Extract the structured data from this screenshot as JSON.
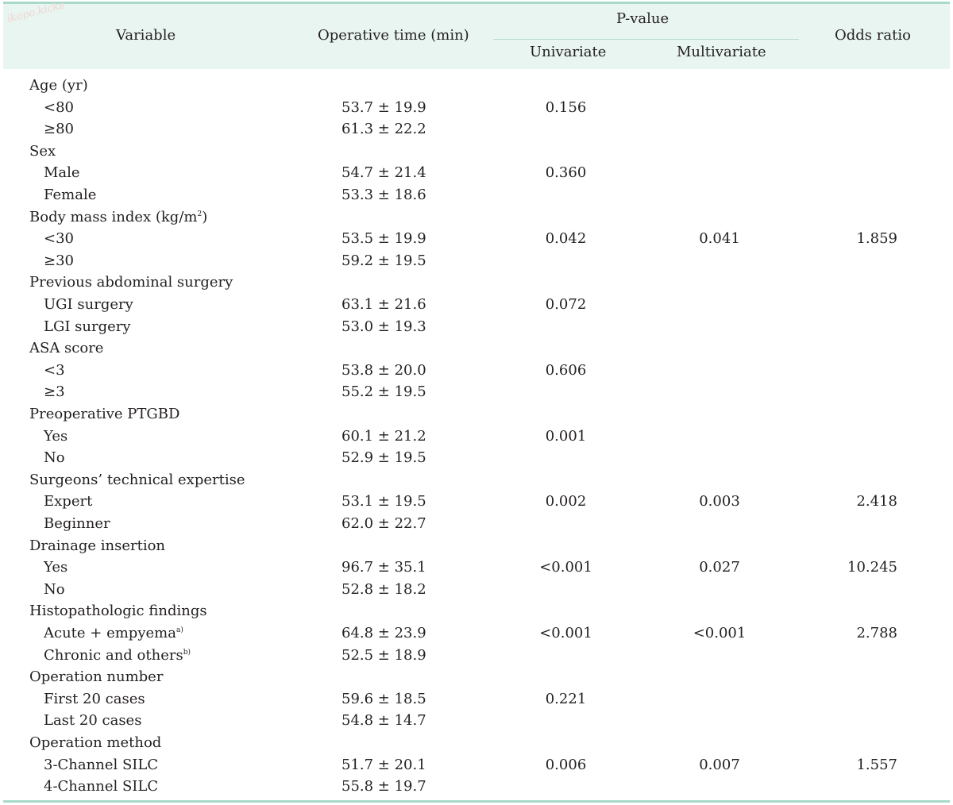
{
  "watermark": "ikopo.kicke",
  "header": {
    "variable": "Variable",
    "operative_time": "Operative time (min)",
    "p_value": "P-value",
    "univariate": "Univariate",
    "multivariate": "Multivariate",
    "odds_ratio": "Odds ratio"
  },
  "rows": [
    {
      "label": "Age (yr)",
      "indent": false,
      "op": "",
      "uni": "",
      "multi": "",
      "odds": ""
    },
    {
      "label": "<80",
      "indent": true,
      "op": "53.7 ± 19.9",
      "uni": "0.156",
      "multi": "",
      "odds": ""
    },
    {
      "label": "≥80",
      "indent": true,
      "op": "61.3 ± 22.2",
      "uni": "",
      "multi": "",
      "odds": ""
    },
    {
      "label": "Sex",
      "indent": false,
      "op": "",
      "uni": "",
      "multi": "",
      "odds": ""
    },
    {
      "label": "Male",
      "indent": true,
      "op": "54.7 ± 21.4",
      "uni": "0.360",
      "multi": "",
      "odds": ""
    },
    {
      "label": "Female",
      "indent": true,
      "op": "53.3 ± 18.6",
      "uni": "",
      "multi": "",
      "odds": ""
    },
    {
      "label": "Body mass index (kg/m",
      "sup": "2",
      "suffix": ")",
      "indent": false,
      "op": "",
      "uni": "",
      "multi": "",
      "odds": ""
    },
    {
      "label": "<30",
      "indent": true,
      "op": "53.5 ± 19.9",
      "uni": "0.042",
      "multi": "0.041",
      "odds": "1.859"
    },
    {
      "label": "≥30",
      "indent": true,
      "op": "59.2 ± 19.5",
      "uni": "",
      "multi": "",
      "odds": ""
    },
    {
      "label": "Previous abdominal surgery",
      "indent": false,
      "op": "",
      "uni": "",
      "multi": "",
      "odds": ""
    },
    {
      "label": "UGI surgery",
      "indent": true,
      "op": "63.1 ± 21.6",
      "uni": "0.072",
      "multi": "",
      "odds": ""
    },
    {
      "label": "LGI surgery",
      "indent": true,
      "op": "53.0 ± 19.3",
      "uni": "",
      "multi": "",
      "odds": ""
    },
    {
      "label": "ASA score",
      "indent": false,
      "op": "",
      "uni": "",
      "multi": "",
      "odds": ""
    },
    {
      "label": "<3",
      "indent": true,
      "op": "53.8 ± 20.0",
      "uni": "0.606",
      "multi": "",
      "odds": ""
    },
    {
      "label": "≥3",
      "indent": true,
      "op": "55.2 ± 19.5",
      "uni": "",
      "multi": "",
      "odds": ""
    },
    {
      "label": "Preoperative PTGBD",
      "indent": false,
      "op": "",
      "uni": "",
      "multi": "",
      "odds": ""
    },
    {
      "label": "Yes",
      "indent": true,
      "op": "60.1 ± 21.2",
      "uni": "0.001",
      "multi": "",
      "odds": ""
    },
    {
      "label": "No",
      "indent": true,
      "op": "52.9 ± 19.5",
      "uni": "",
      "multi": "",
      "odds": ""
    },
    {
      "label": "Surgeons’ technical expertise",
      "indent": false,
      "op": "",
      "uni": "",
      "multi": "",
      "odds": ""
    },
    {
      "label": "Expert",
      "indent": true,
      "op": "53.1 ± 19.5",
      "uni": "0.002",
      "multi": "0.003",
      "odds": "2.418"
    },
    {
      "label": "Beginner",
      "indent": true,
      "op": "62.0 ± 22.7",
      "uni": "",
      "multi": "",
      "odds": ""
    },
    {
      "label": "Drainage insertion",
      "indent": false,
      "op": "",
      "uni": "",
      "multi": "",
      "odds": ""
    },
    {
      "label": "Yes",
      "indent": true,
      "op": "96.7 ± 35.1",
      "uni": "<0.001",
      "multi": "0.027",
      "odds": "10.245"
    },
    {
      "label": "No",
      "indent": true,
      "op": "52.8 ± 18.2",
      "uni": "",
      "multi": "",
      "odds": ""
    },
    {
      "label": "Histopathologic findings",
      "indent": false,
      "op": "",
      "uni": "",
      "multi": "",
      "odds": ""
    },
    {
      "label": "Acute + empyema",
      "sup": "a)",
      "indent": true,
      "op": "64.8 ± 23.9",
      "uni": "<0.001",
      "multi": "<0.001",
      "odds": "2.788"
    },
    {
      "label": "Chronic and others",
      "sup": "b)",
      "indent": true,
      "op": "52.5 ± 18.9",
      "uni": "",
      "multi": "",
      "odds": ""
    },
    {
      "label": "Operation number",
      "indent": false,
      "op": "",
      "uni": "",
      "multi": "",
      "odds": ""
    },
    {
      "label": "First 20 cases",
      "indent": true,
      "op": "59.6 ± 18.5",
      "uni": "0.221",
      "multi": "",
      "odds": ""
    },
    {
      "label": "Last 20 cases",
      "indent": true,
      "op": "54.8 ± 14.7",
      "uni": "",
      "multi": "",
      "odds": ""
    },
    {
      "label": "Operation method",
      "indent": false,
      "op": "",
      "uni": "",
      "multi": "",
      "odds": ""
    },
    {
      "label": "3-Channel SILC",
      "indent": true,
      "op": "51.7 ± 20.1",
      "uni": "0.006",
      "multi": "0.007",
      "odds": "1.557"
    },
    {
      "label": "4-Channel SILC",
      "indent": true,
      "op": "55.8 ± 19.7",
      "uni": "",
      "multi": "",
      "odds": ""
    }
  ]
}
